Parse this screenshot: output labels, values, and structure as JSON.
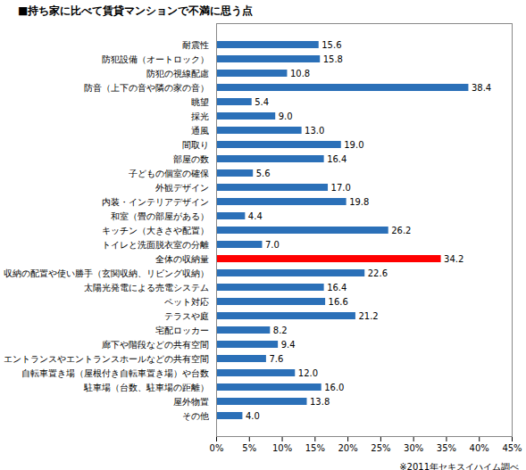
{
  "chart_data": {
    "type": "bar",
    "orientation": "horizontal",
    "title": "■持ち家に比べて賃貸マンションで不満に思う点",
    "source": "※2011年セキスイハイム調べ",
    "categories": [
      "耐震性",
      "防犯設備（オートロック）",
      "防犯の視線配慮",
      "防音（上下の音や隣の家の音）",
      "眺望",
      "採光",
      "通風",
      "間取り",
      "部屋の数",
      "子どもの個室の確保",
      "外観デザイン",
      "内装・インテリアデザイン",
      "和室（畳の部屋がある）",
      "キッチン（大きさや配置）",
      "トイレと洗面脱衣室の分離",
      "全体の収納量",
      "収納の配置や使い勝手（玄関収納、リビング収納）",
      "太陽光発電による売電システム",
      "ペット対応",
      "テラスや庭",
      "宅配ロッカー",
      "廊下や階段などの共有空間",
      "エントランスやエントランスホールなどの共有空間",
      "自転車置き場（屋根付き自転車置き場）や台数",
      "駐車場（台数、駐車場の距離）",
      "屋外物置",
      "その他"
    ],
    "values": [
      15.6,
      15.8,
      10.8,
      38.4,
      5.4,
      9.0,
      13.0,
      19.0,
      16.4,
      5.6,
      17.0,
      19.8,
      4.4,
      26.2,
      7.0,
      34.2,
      22.6,
      16.4,
      16.6,
      21.2,
      8.2,
      9.4,
      7.6,
      12.0,
      16.0,
      13.8,
      4.0
    ],
    "value_labels": [
      "15.6",
      "15.8",
      "10.8",
      "38.4",
      "5.4",
      "9.0",
      "13.0",
      "19.0",
      "16.4",
      "5.6",
      "17.0",
      "19.8",
      "4.4",
      "26.2",
      "7.0",
      "34.2",
      "22.6",
      "16.4",
      "16.6",
      "21.2",
      "8.2",
      "9.4",
      "7.6",
      "12.0",
      "16.0",
      "13.8",
      "4.0"
    ],
    "colors": [
      "#2b70b8",
      "#2b70b8",
      "#2b70b8",
      "#2b70b8",
      "#2b70b8",
      "#2b70b8",
      "#2b70b8",
      "#2b70b8",
      "#2b70b8",
      "#2b70b8",
      "#2b70b8",
      "#2b70b8",
      "#2b70b8",
      "#2b70b8",
      "#2b70b8",
      "#ff0000",
      "#2b70b8",
      "#2b70b8",
      "#2b70b8",
      "#2b70b8",
      "#2b70b8",
      "#2b70b8",
      "#2b70b8",
      "#2b70b8",
      "#2b70b8",
      "#2b70b8",
      "#2b70b8"
    ],
    "xlim": [
      0,
      45
    ],
    "xticks": [
      {
        "value": 0,
        "label": "0%"
      },
      {
        "value": 5,
        "label": "5%"
      },
      {
        "value": 10,
        "label": "10%"
      },
      {
        "value": 15,
        "label": "15%"
      },
      {
        "value": 20,
        "label": "20%"
      },
      {
        "value": 25,
        "label": "25%"
      },
      {
        "value": 30,
        "label": "30%"
      },
      {
        "value": 35,
        "label": "35%"
      },
      {
        "value": 40,
        "label": "40%"
      },
      {
        "value": 45,
        "label": "45%"
      }
    ],
    "grid": false,
    "data_labels": true
  }
}
